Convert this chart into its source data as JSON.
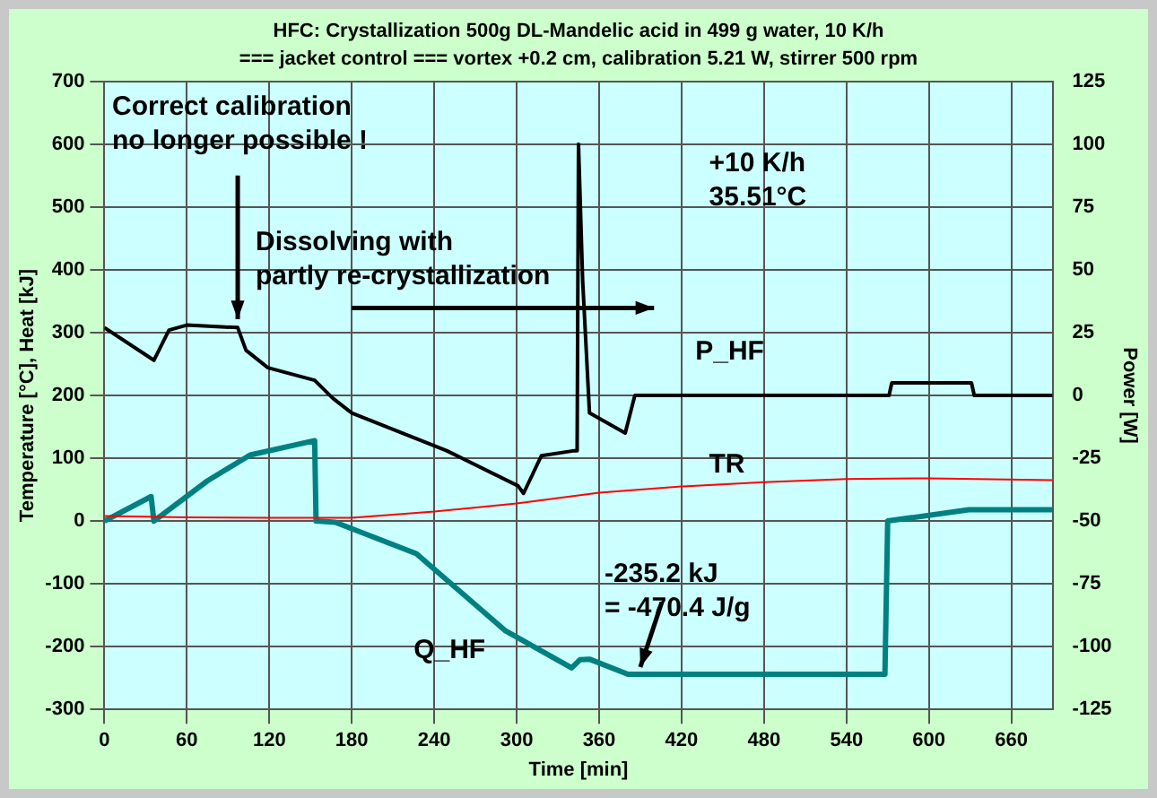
{
  "chart_data": {
    "type": "line",
    "title": "HFC: Crystallization 500g DL-Mandelic acid in 499 g water, 10 K/h",
    "subtitle": "=== jacket control === vortex +0.2 cm, calibration 5.21 W, stirrer 500 rpm",
    "xlabel": "Time [min]",
    "ylabel": "Temperature [°C], Heat [kJ]",
    "y2label": "Power [W]",
    "xlim": [
      0,
      690
    ],
    "xticks": [
      0,
      60,
      120,
      180,
      240,
      300,
      360,
      420,
      480,
      540,
      600,
      660
    ],
    "ylim": [
      -300,
      700
    ],
    "yticks": [
      -300,
      -200,
      -100,
      0,
      100,
      200,
      300,
      400,
      500,
      600,
      700
    ],
    "y2lim": [
      -125,
      125
    ],
    "y2ticks": [
      -125,
      -100,
      -75,
      -50,
      -25,
      0,
      25,
      50,
      75,
      100,
      125
    ],
    "grid": true,
    "legend": false,
    "marker": "none",
    "line_style": "solid",
    "series": [
      {
        "name": "P_HF",
        "color": "#000000",
        "axis": "y2",
        "x": [
          0,
          36,
          47,
          60,
          97,
          103,
          119,
          153,
          166,
          180,
          249,
          301,
          305,
          318,
          342,
          344,
          345,
          348,
          353,
          379,
          386,
          440,
          520,
          571,
          573,
          631,
          633,
          690
        ],
        "values": [
          27,
          14,
          26,
          28,
          27,
          18,
          11,
          6,
          -1,
          -7,
          -22,
          -36,
          -39,
          -24,
          -22,
          -22,
          100,
          46,
          -7,
          -15,
          0,
          0,
          0,
          0,
          5,
          5,
          0,
          0
        ]
      },
      {
        "name": "TR",
        "color": "#ff0000",
        "x": [
          0,
          60,
          120,
          180,
          240,
          300,
          360,
          420,
          480,
          540,
          600,
          690
        ],
        "values": [
          8,
          6,
          5,
          5,
          15,
          28,
          45,
          55,
          62,
          67,
          68,
          65
        ]
      },
      {
        "name": "Q_HF",
        "color": "#008080",
        "x": [
          0,
          34,
          36,
          75,
          106,
          153,
          154,
          168,
          227,
          292,
          340,
          346,
          353,
          381,
          568,
          570,
          629,
          690
        ],
        "values": [
          0,
          39,
          0,
          64,
          105,
          128,
          0,
          -2,
          -52,
          -175,
          -234,
          -221,
          -220,
          -244,
          -244,
          0,
          18,
          18
        ]
      }
    ],
    "annotations": [
      {
        "text": "Correct calibration\nno longer possible !",
        "x": 97,
        "y": 310
      },
      "Dissolving with\npartly re-crystallization",
      "+10 K/h\n35.51°C",
      {
        "text": "-235.2 kJ\n= -470.4 J/g",
        "x": 390,
        "y": -244
      }
    ]
  }
}
